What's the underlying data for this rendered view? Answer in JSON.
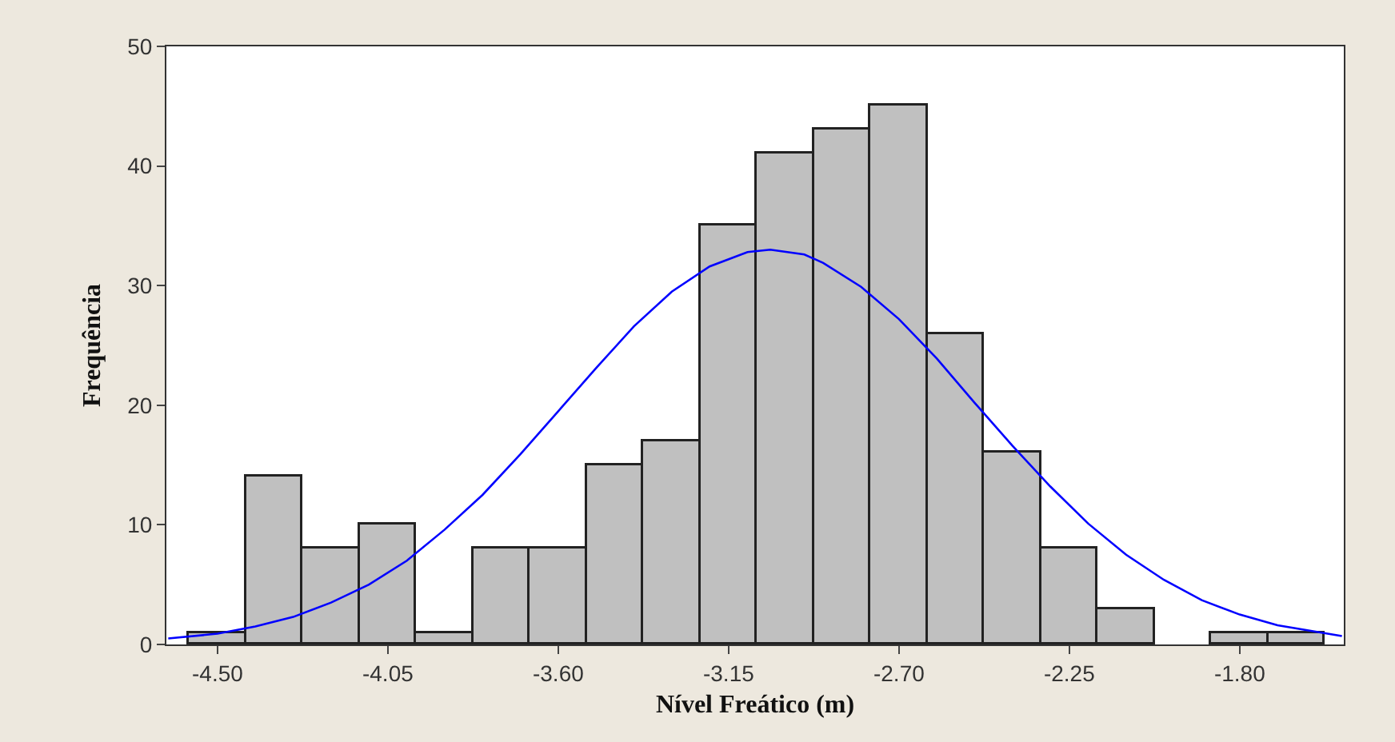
{
  "chart_data": {
    "type": "histogram",
    "xlabel": "Nível Freático (m)",
    "ylabel": "Frequência",
    "bins": [
      -4.575,
      -4.425,
      -4.275,
      -4.125,
      -3.975,
      -3.825,
      -3.675,
      -3.525,
      -3.375,
      -3.225,
      -3.075,
      -2.925,
      -2.775,
      -2.625,
      -2.475,
      -2.325,
      -2.175,
      -2.025,
      -1.875,
      -1.725,
      -1.575
    ],
    "values": [
      1,
      14,
      8,
      10,
      1,
      8,
      8,
      15,
      17,
      35,
      41,
      43,
      45,
      26,
      16,
      8,
      3,
      0,
      1,
      1
    ],
    "color": "#c0c0c0",
    "series": [
      {
        "type": "line",
        "color": "#0000ff",
        "x": [
          -4.63,
          -4.5,
          -4.4,
          -4.3,
          -4.2,
          -4.1,
          -4.0,
          -3.9,
          -3.8,
          -3.7,
          -3.6,
          -3.5,
          -3.4,
          -3.3,
          -3.2,
          -3.1,
          -3.04,
          -2.95,
          -2.9,
          -2.8,
          -2.7,
          -2.6,
          -2.5,
          -2.4,
          -2.3,
          -2.2,
          -2.1,
          -2.0,
          -1.9,
          -1.8,
          -1.7,
          -1.53
        ],
        "values": [
          0.5,
          0.9,
          1.5,
          2.3,
          3.5,
          5.0,
          7.0,
          9.6,
          12.5,
          15.9,
          19.5,
          23.1,
          26.6,
          29.5,
          31.6,
          32.8,
          33,
          32.6,
          31.9,
          29.9,
          27.2,
          23.9,
          20.2,
          16.6,
          13.2,
          10.1,
          7.5,
          5.4,
          3.7,
          2.5,
          1.6,
          0.7
        ]
      }
    ],
    "xlim": [
      -4.635,
      -1.525
    ],
    "xticks": [
      {
        "value": -4.5,
        "label": "-4.50"
      },
      {
        "value": -4.05,
        "label": "-4.05"
      },
      {
        "value": -3.6,
        "label": "-3.60"
      },
      {
        "value": -3.15,
        "label": "-3.15"
      },
      {
        "value": -2.7,
        "label": "-2.70"
      },
      {
        "value": -2.25,
        "label": "-2.25"
      },
      {
        "value": -1.8,
        "label": "-1.80"
      }
    ],
    "ylim": [
      0,
      50
    ],
    "yticks": [
      0,
      10,
      20,
      30,
      40,
      50
    ],
    "grid": false
  }
}
